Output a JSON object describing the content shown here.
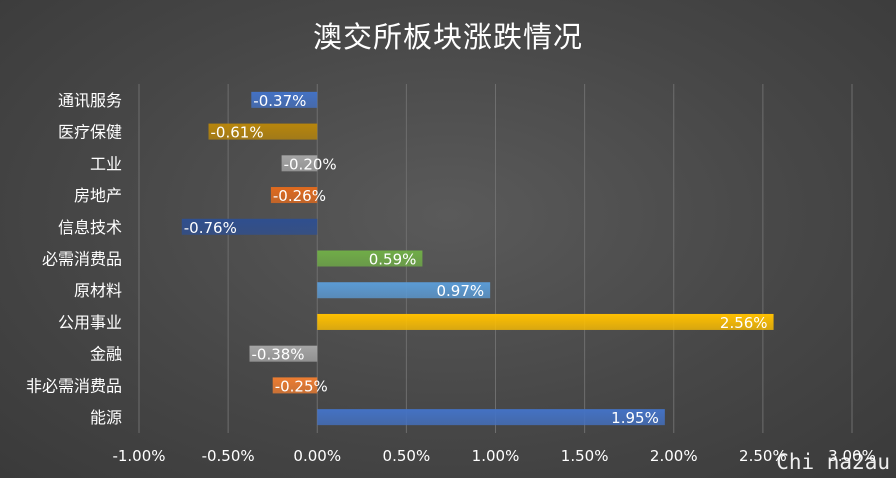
{
  "chart_data": {
    "type": "bar",
    "orientation": "horizontal",
    "title": "澳交所板块涨跌情况",
    "xlabel": "",
    "ylabel": "",
    "categories": [
      "通讯服务",
      "医疗保健",
      "工业",
      "房地产",
      "信息技术",
      "必需消费品",
      "原材料",
      "公用事业",
      "金融",
      "非必需消费品",
      "能源"
    ],
    "values": [
      -0.37,
      -0.61,
      -0.2,
      -0.26,
      -0.76,
      0.59,
      0.97,
      2.56,
      -0.38,
      -0.25,
      1.95
    ],
    "data_labels": [
      "-0.37%",
      "-0.61%",
      "-0.20%",
      "-0.26%",
      "-0.76%",
      "0.59%",
      "0.97%",
      "2.56%",
      "-0.38%",
      "-0.25%",
      "1.95%"
    ],
    "colors": [
      "#4472c4",
      "#b8860b",
      "#a5a5a5",
      "#e06a1e",
      "#2f4f8f",
      "#70ad47",
      "#5b9bd5",
      "#ffc000",
      "#a5a5a5",
      "#ed7d31",
      "#4472c4"
    ],
    "xlim": [
      -1.0,
      3.0
    ],
    "x_ticks": [
      -1.0,
      -0.5,
      0.0,
      0.5,
      1.0,
      1.5,
      2.0,
      2.5,
      3.0
    ],
    "x_tick_labels": [
      "-1.00%",
      "-0.50%",
      "0.00%",
      "0.50%",
      "1.00%",
      "1.50%",
      "2.00%",
      "2.50%",
      "3.00%"
    ],
    "grid": "vertical",
    "legend": "none"
  },
  "watermark": "Chi na2au"
}
